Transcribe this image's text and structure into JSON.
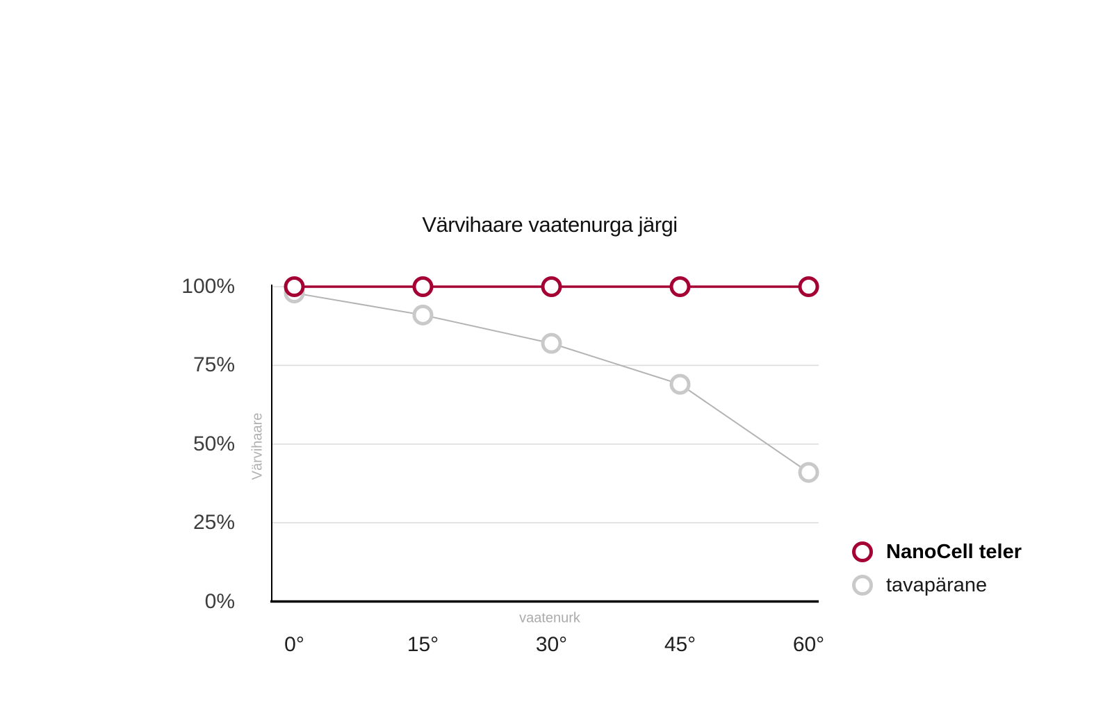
{
  "page": {
    "background_color": "#ffffff"
  },
  "chart_data": {
    "type": "line",
    "title": "Värvihaare vaatenurga järgi",
    "xlabel": "vaatenurk",
    "ylabel": "Värvihaare",
    "categories": [
      "0°",
      "15°",
      "30°",
      "45°",
      "60°"
    ],
    "x_values_degrees": [
      0,
      15,
      30,
      45,
      60
    ],
    "yticks": [
      {
        "label": "0%",
        "value": 0
      },
      {
        "label": "25%",
        "value": 25
      },
      {
        "label": "50%",
        "value": 50
      },
      {
        "label": "75%",
        "value": 75
      },
      {
        "label": "100%",
        "value": 100
      }
    ],
    "ylim": [
      0,
      100
    ],
    "grid": true,
    "legend_position": "right",
    "series": [
      {
        "name": "NanoCell teler",
        "values": [
          100,
          100,
          100,
          100,
          100
        ],
        "color": "#A50034",
        "line_color": "#A50034",
        "line_width": 3.5,
        "marker": "open-circle"
      },
      {
        "name": "tavapärane",
        "values": [
          98,
          91,
          82,
          69,
          41
        ],
        "color": "#C9C9C9",
        "line_color": "#B3B3B3",
        "line_width": 2,
        "marker": "open-circle"
      }
    ],
    "axis_color": "#000000",
    "gridline_color": "#dbdbdb",
    "marker_fill": "#ffffff"
  }
}
